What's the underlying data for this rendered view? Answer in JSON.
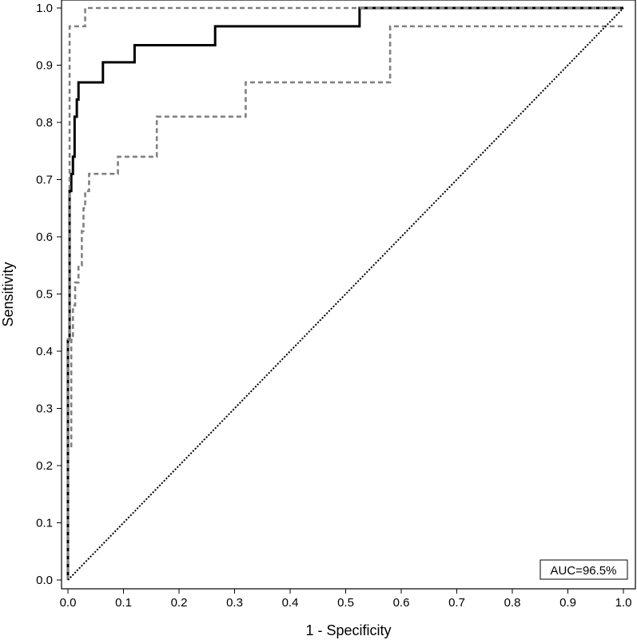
{
  "chart_data": {
    "type": "line",
    "title": "",
    "xlabel": "1 - Specificity",
    "ylabel": "Sensitivity",
    "xlim": [
      0.0,
      1.0
    ],
    "ylim": [
      0.0,
      1.0
    ],
    "xticks": [
      "0.0",
      "0.1",
      "0.2",
      "0.3",
      "0.4",
      "0.5",
      "0.6",
      "0.7",
      "0.8",
      "0.9",
      "1.0"
    ],
    "yticks": [
      "0.0",
      "0.1",
      "0.2",
      "0.3",
      "0.4",
      "0.5",
      "0.6",
      "0.7",
      "0.8",
      "0.9",
      "1.0"
    ],
    "grid": false,
    "annotation": "AUC=96.5%",
    "series": [
      {
        "style": "solid",
        "color": "#000000",
        "x": [
          0.0,
          0.0,
          0.003,
          0.003,
          0.006,
          0.006,
          0.009,
          0.009,
          0.012,
          0.012,
          0.016,
          0.016,
          0.019,
          0.019,
          0.022,
          0.022,
          0.063,
          0.063,
          0.12,
          0.12,
          0.265,
          0.265,
          0.525,
          0.525,
          1.0
        ],
        "y": [
          0.0,
          0.42,
          0.42,
          0.68,
          0.68,
          0.71,
          0.71,
          0.74,
          0.74,
          0.81,
          0.81,
          0.84,
          0.84,
          0.87,
          0.87,
          0.87,
          0.87,
          0.905,
          0.905,
          0.935,
          0.935,
          0.968,
          0.968,
          1.0,
          1.0
        ]
      },
      {
        "style": "dashed",
        "color": "#808080",
        "x": [
          0.0,
          0.0,
          0.003,
          0.003,
          0.031,
          0.031,
          1.0
        ],
        "y": [
          0.0,
          0.42,
          0.42,
          0.968,
          0.968,
          1.0,
          1.0
        ]
      },
      {
        "style": "dashed",
        "color": "#808080",
        "x": [
          0.0,
          0.0,
          0.006,
          0.006,
          0.009,
          0.009,
          0.013,
          0.013,
          0.019,
          0.019,
          0.025,
          0.025,
          0.028,
          0.028,
          0.031,
          0.031,
          0.038,
          0.038,
          0.09,
          0.09,
          0.16,
          0.16,
          0.32,
          0.32,
          0.58,
          0.58,
          1.0
        ],
        "y": [
          0.0,
          0.23,
          0.23,
          0.42,
          0.42,
          0.48,
          0.48,
          0.52,
          0.52,
          0.55,
          0.55,
          0.61,
          0.61,
          0.65,
          0.65,
          0.68,
          0.68,
          0.71,
          0.71,
          0.74,
          0.74,
          0.81,
          0.81,
          0.87,
          0.87,
          0.968,
          0.968
        ]
      },
      {
        "style": "dotted",
        "color": "#000000",
        "x": [
          0.0,
          1.0
        ],
        "y": [
          0.0,
          1.0
        ]
      }
    ]
  }
}
